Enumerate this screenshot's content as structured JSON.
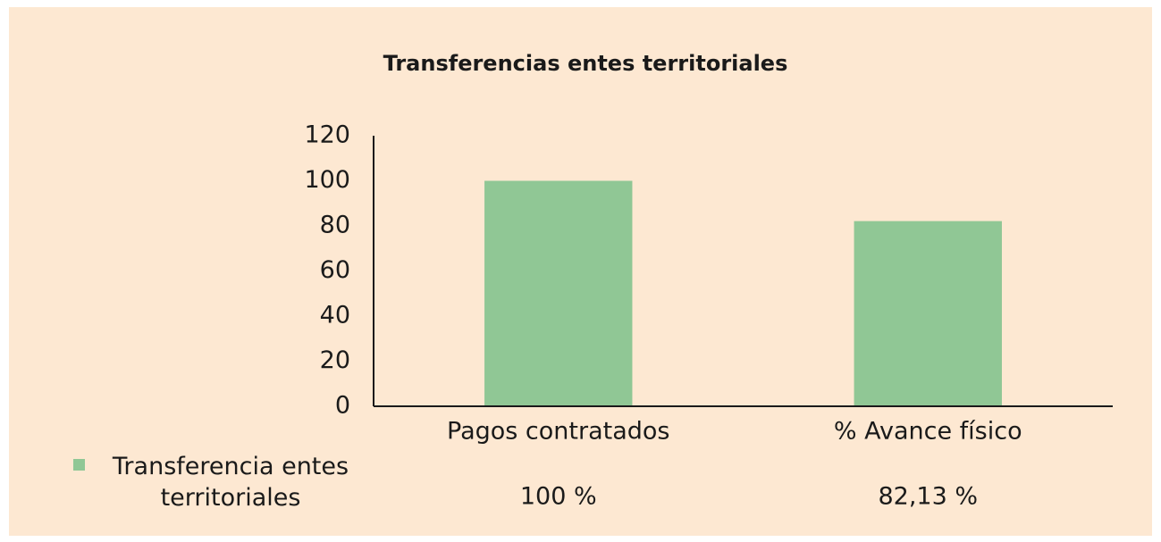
{
  "chart_data": {
    "type": "bar",
    "title": "Transferencias entes territoriales",
    "categories": [
      "Pagos contratados",
      "% Avance físico"
    ],
    "series": [
      {
        "name": "Transferencia entes territoriales",
        "color": "#90c795",
        "values": [
          100,
          82.13
        ],
        "value_labels": [
          "100 %",
          "82,13 %"
        ]
      }
    ],
    "ylim": [
      0,
      120
    ],
    "yticks": [
      0,
      20,
      40,
      60,
      80,
      100,
      120
    ],
    "grid": false,
    "background": "#fde8d2"
  }
}
